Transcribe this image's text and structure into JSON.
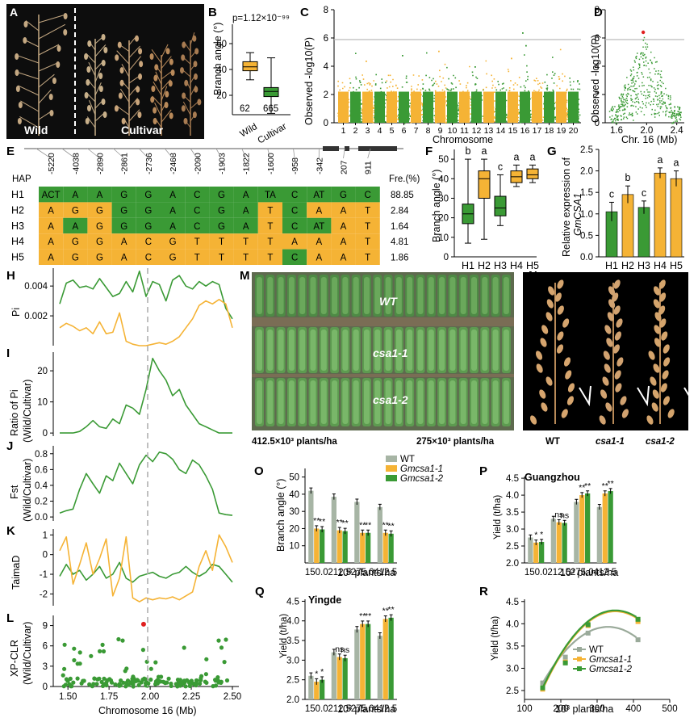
{
  "panels": {
    "A": {
      "label": "A",
      "wild": "Wild",
      "cultivar": "Cultivar"
    },
    "B": {
      "label": "B",
      "ylabel": "Branch angle (°)",
      "pvalue": "p=1.12×10⁻⁹⁹",
      "categories": [
        "Wild",
        "Cultivar"
      ],
      "counts": [
        "62",
        "665"
      ],
      "yticks": [
        "20",
        "40",
        "60"
      ]
    },
    "C": {
      "label": "C",
      "ylabel": "Observed -log10(P)",
      "xlabel": "Chromosome",
      "chromosomes": [
        "1",
        "2",
        "3",
        "4",
        "5",
        "6",
        "7",
        "8",
        "9",
        "10",
        "11",
        "12",
        "13",
        "14",
        "15",
        "16",
        "17",
        "18",
        "19",
        "20"
      ],
      "yticks": [
        "0",
        "2",
        "4",
        "6",
        "8"
      ]
    },
    "D": {
      "label": "D",
      "ylabel": "Observed -log10(P)",
      "xlabel": "Chr. 16 (Mb)",
      "xticks": [
        "1.6",
        "2.0",
        "2.4"
      ],
      "yticks": [
        "0",
        "2",
        "4",
        "6",
        "8"
      ]
    },
    "E": {
      "label": "E",
      "hap_header": "HAP",
      "freq_header": "Fre.(%)",
      "positions": [
        "-5220",
        "-4038",
        "-2890",
        "-2861",
        "-2736",
        "-2468",
        "-2090",
        "-1903",
        "-1822",
        "-1600",
        "-958",
        "-342",
        "207",
        "911"
      ],
      "haps": [
        {
          "name": "H1",
          "alleles": [
            "ACT",
            "A",
            "A",
            "G",
            "G",
            "A",
            "C",
            "G",
            "A",
            "TA",
            "C",
            "AT",
            "G",
            "C"
          ],
          "freq": "88.85"
        },
        {
          "name": "H2",
          "alleles": [
            "A",
            "G",
            "G",
            "G",
            "G",
            "A",
            "C",
            "G",
            "A",
            "T",
            "C",
            "A",
            "A",
            "T"
          ],
          "freq": "2.84"
        },
        {
          "name": "H3",
          "alleles": [
            "A",
            "A",
            "G",
            "G",
            "G",
            "A",
            "C",
            "G",
            "A",
            "T",
            "C",
            "AT",
            "A",
            "T"
          ],
          "freq": "1.64"
        },
        {
          "name": "H4",
          "alleles": [
            "A",
            "G",
            "G",
            "A",
            "C",
            "G",
            "T",
            "T",
            "T",
            "T",
            "A",
            "A",
            "A",
            "T"
          ],
          "freq": "4.81"
        },
        {
          "name": "H5",
          "alleles": [
            "A",
            "G",
            "G",
            "A",
            "C",
            "G",
            "T",
            "T",
            "T",
            "T",
            "C",
            "A",
            "A",
            "T"
          ],
          "freq": "1.86"
        }
      ],
      "colors": {
        "green": "#3a9a35",
        "orange": "#f5b335"
      }
    },
    "F": {
      "label": "F",
      "ylabel": "Branch angle (°)",
      "categories": [
        "H1",
        "H2",
        "H3",
        "H4",
        "H5"
      ],
      "letters": [
        "b",
        "a",
        "c",
        "a",
        "a"
      ],
      "yticks": [
        "0",
        "10",
        "20",
        "30",
        "40",
        "50"
      ]
    },
    "G": {
      "label": "G",
      "ylabel_a": "Relative expression of",
      "ylabel_b": "GmCSA1",
      "categories": [
        "H1",
        "H2",
        "H3",
        "H4",
        "H5"
      ],
      "letters": [
        "c",
        "b",
        "c",
        "a",
        "a"
      ],
      "values": [
        1.05,
        1.45,
        1.15,
        1.95,
        1.82
      ],
      "yticks": [
        "0.0",
        "0.5",
        "1.0",
        "1.5",
        "2.0",
        "2.5"
      ]
    },
    "H": {
      "label": "H",
      "ylabel": "Pi",
      "yticks": [
        "0.002",
        "0.004"
      ]
    },
    "I": {
      "label": "I",
      "ylabel_a": "Ratio of Pi",
      "ylabel_b": "(Wild/Cultivar)",
      "yticks": [
        "0",
        "10",
        "20"
      ]
    },
    "J": {
      "label": "J",
      "ylabel_a": "Fst",
      "ylabel_b": "(Wild/Cultivar)",
      "yticks": [
        "0.0",
        "0.2",
        "0.4",
        "0.6",
        "0.8"
      ]
    },
    "K": {
      "label": "K",
      "ylabel": "TaimaD",
      "yticks": [
        "-2",
        "-1",
        "0",
        "1"
      ]
    },
    "L": {
      "label": "L",
      "ylabel_a": "XP-CLR",
      "ylabel_b": "(Wild/Cultivar)",
      "xlabel": "Chromosome 16 (Mb)",
      "xticks": [
        "1.50",
        "1.75",
        "2.00",
        "2.25",
        "2.50"
      ],
      "yticks": [
        "0",
        "3",
        "6",
        "9"
      ]
    },
    "M": {
      "label": "M",
      "plots": [
        "WT",
        "csa1-1",
        "csa1-2"
      ],
      "density_left": "412.5×10³ plants/ha",
      "density_right": "275×10³ plants/ha"
    },
    "N": {
      "label": "N",
      "plants": [
        "WT",
        "csa1-1",
        "csa1-2"
      ]
    },
    "O": {
      "label": "O",
      "ylabel": "Branch angle (°)",
      "xlabel": "10³ plants/ha",
      "legend": [
        "WT",
        "Gmcsa1-1",
        "Gmcsa1-2"
      ],
      "categories": [
        "150.0",
        "212.5",
        "275.0",
        "412.5"
      ],
      "series": [
        {
          "name": "WT",
          "values": [
            42,
            38.5,
            35.5,
            32.5
          ]
        },
        {
          "name": "Gmcsa1-1",
          "values": [
            20,
            19,
            17.5,
            17.5
          ]
        },
        {
          "name": "Gmcsa1-2",
          "values": [
            19.5,
            18.5,
            17.5,
            17
          ]
        }
      ],
      "sig": [
        [
          "**",
          "**"
        ],
        [
          "**",
          "**"
        ],
        [
          "**",
          "**"
        ],
        [
          "**",
          "**"
        ]
      ],
      "yticks": [
        "10",
        "20",
        "30",
        "40",
        "50"
      ]
    },
    "P": {
      "label": "P",
      "title": "Guangzhou",
      "ylabel": "Yield (t/ha)",
      "xlabel": "10³ plants/ha",
      "categories": [
        "150.0",
        "212.5",
        "275.0",
        "412.5"
      ],
      "series": [
        {
          "name": "WT",
          "values": [
            2.75,
            3.3,
            3.8,
            3.65
          ]
        },
        {
          "name": "Gmcsa1-1",
          "values": [
            2.6,
            3.2,
            4.0,
            4.05
          ]
        },
        {
          "name": "Gmcsa1-2",
          "values": [
            2.62,
            3.18,
            4.05,
            4.12
          ]
        }
      ],
      "sig": [
        [
          "*",
          "*"
        ],
        [
          "ns",
          "ns"
        ],
        [
          "**",
          "**"
        ],
        [
          "**",
          "**"
        ]
      ],
      "yticks": [
        "2.0",
        "2.5",
        "3.0",
        "3.5",
        "4.0",
        "4.5"
      ]
    },
    "Q": {
      "label": "Q",
      "title": "Yingde",
      "ylabel": "Yield (t/ha)",
      "xlabel": "10³ plants/ha",
      "categories": [
        "150.0",
        "212.5",
        "275.0",
        "412.5"
      ],
      "series": [
        {
          "name": "WT",
          "values": [
            2.6,
            3.2,
            3.78,
            3.62
          ]
        },
        {
          "name": "Gmcsa1-1",
          "values": [
            2.45,
            3.08,
            3.92,
            4.05
          ]
        },
        {
          "name": "Gmcsa1-2",
          "values": [
            2.5,
            3.05,
            3.92,
            4.08
          ]
        }
      ],
      "sig": [
        [
          "*",
          "*"
        ],
        [
          "ns",
          "ns"
        ],
        [
          "**",
          "**"
        ],
        [
          "**",
          "**"
        ]
      ],
      "yticks": [
        "2.0",
        "2.5",
        "3.0",
        "3.5",
        "4.0",
        "4.5"
      ]
    },
    "R": {
      "label": "R",
      "ylabel": "Yield (t/ha)",
      "xlabel": "10³ plants/ha",
      "legend": [
        "WT",
        "Gmcsa1-1",
        "Gmcsa1-2"
      ],
      "xticks": [
        "100",
        "200",
        "300",
        "400",
        "500"
      ],
      "yticks": [
        "2.5",
        "3.0",
        "3.5",
        "4.0",
        "4.5"
      ],
      "series": [
        {
          "name": "WT",
          "x": [
            150,
            212.5,
            275,
            412.5
          ],
          "values": [
            2.67,
            3.25,
            3.79,
            3.64
          ]
        },
        {
          "name": "Gmcsa1-1",
          "x": [
            150,
            212.5,
            275,
            412.5
          ],
          "values": [
            2.53,
            3.14,
            3.96,
            4.05
          ]
        },
        {
          "name": "Gmcsa1-2",
          "x": [
            150,
            212.5,
            275,
            412.5
          ],
          "values": [
            2.56,
            3.12,
            3.98,
            4.1
          ]
        }
      ]
    }
  },
  "colors": {
    "green": "#3a9a35",
    "orange": "#f5b335",
    "gray": "#9aaa9a",
    "wt": "#a7b5a5"
  }
}
